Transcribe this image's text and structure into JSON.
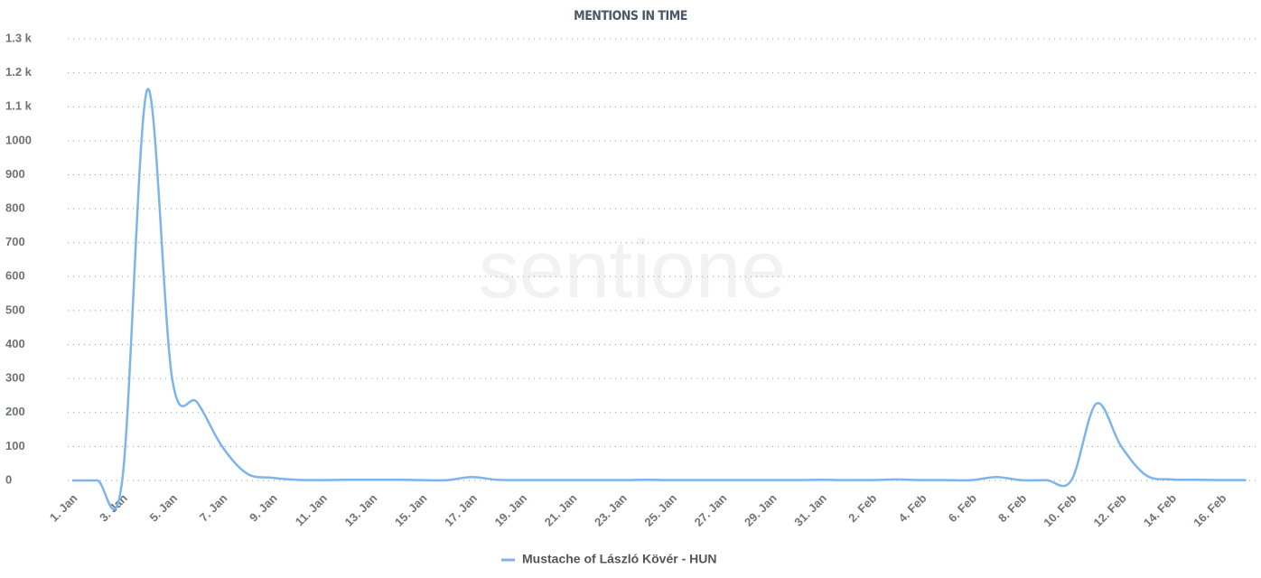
{
  "chart_data": {
    "type": "line",
    "title": "MENTIONS IN TIME",
    "watermark": "sentione",
    "categories": [
      "1. Jan",
      null,
      "3. Jan",
      null,
      "5. Jan",
      null,
      "7. Jan",
      null,
      "9. Jan",
      null,
      "11. Jan",
      null,
      "13. Jan",
      null,
      "15. Jan",
      null,
      "17. Jan",
      null,
      "19. Jan",
      null,
      "21. Jan",
      null,
      "23. Jan",
      null,
      "25. Jan",
      null,
      "27. Jan",
      null,
      "29. Jan",
      null,
      "31. Jan",
      null,
      "2. Feb",
      null,
      "4. Feb",
      null,
      "6. Feb",
      null,
      "8. Feb",
      null,
      "10. Feb",
      null,
      "12. Feb",
      null,
      "14. Feb",
      null,
      "16. Feb",
      null
    ],
    "series": [
      {
        "name": "Mustache of László Kövér - HUN",
        "color": "#7cb5ec",
        "values": [
          0,
          0,
          0,
          1150,
          300,
          230,
          100,
          20,
          8,
          2,
          1,
          2,
          2,
          2,
          1,
          1,
          10,
          2,
          1,
          1,
          1,
          1,
          1,
          2,
          1,
          1,
          1,
          1,
          1,
          1,
          2,
          1,
          1,
          3,
          1,
          1,
          1,
          10,
          1,
          1,
          0,
          226,
          100,
          15,
          3,
          2,
          1,
          1
        ]
      }
    ],
    "ylim": [
      0,
      1300
    ],
    "yticks": [
      0,
      100,
      200,
      300,
      400,
      500,
      600,
      700,
      800,
      900,
      1000,
      {
        "value": 1100,
        "label": "1.1 k"
      },
      {
        "value": 1200,
        "label": "1.2 k"
      },
      {
        "value": 1300,
        "label": "1.3 k"
      }
    ],
    "grid": true,
    "legend": "bottom"
  }
}
